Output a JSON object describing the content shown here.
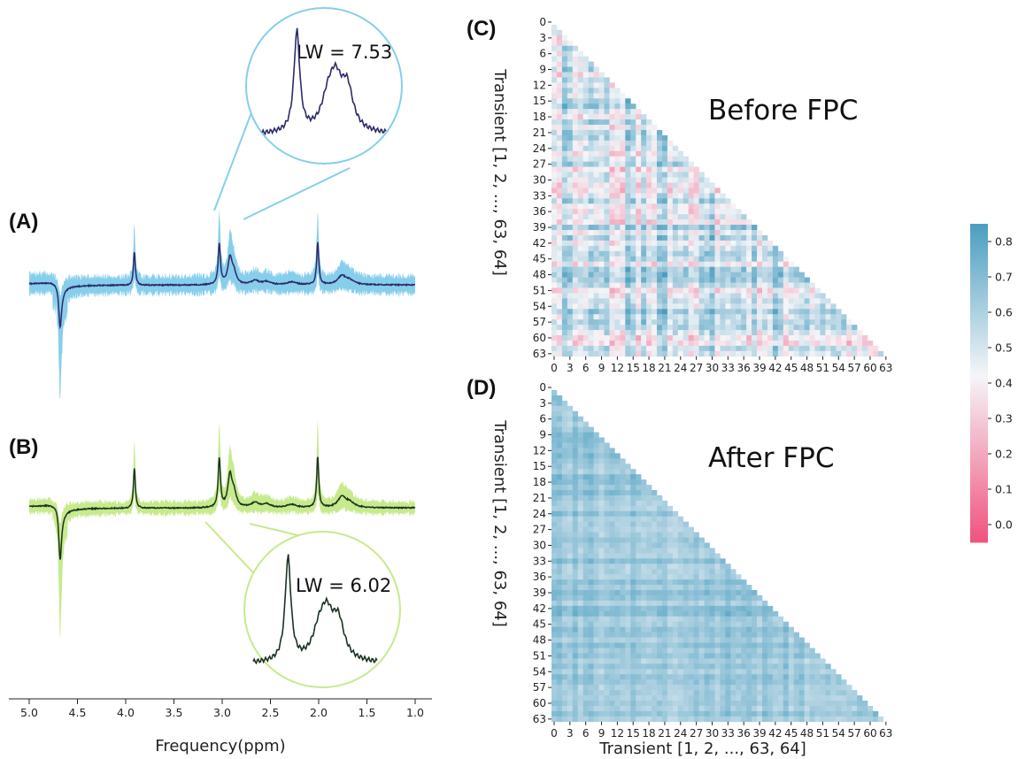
{
  "chart_data": [
    {
      "panel": "(A)",
      "type": "line",
      "description_series": "average spectrum with transient spread band",
      "x_axis_reversed": true,
      "xlim": [
        5.0,
        1.0
      ],
      "band_color": "#87ceeb",
      "line_color": "#2b2a6b",
      "peaks_ppm": [
        4.68,
        3.91,
        3.03,
        2.92,
        2.01,
        1.76
      ],
      "inset": {
        "label": "LW = 7.53",
        "circle_color": "#87ceeb",
        "line_color": "#2b2a6b"
      }
    },
    {
      "panel": "(B)",
      "type": "line",
      "x_axis_reversed": true,
      "xlim": [
        5.0,
        1.0
      ],
      "band_color": "#c6ea8c",
      "line_color": "#1a3320",
      "peaks_ppm": [
        4.68,
        3.91,
        3.03,
        2.92,
        2.01,
        1.76
      ],
      "inset": {
        "label": "LW = 6.02",
        "circle_color": "#c6ea8c",
        "line_color": "#1a3320"
      }
    },
    {
      "panel": "(C)",
      "type": "heatmap",
      "title": "Before FPC",
      "n": 64,
      "lower_triangle": true,
      "ylabel": "Transient [1, 2, ..., 63, 64]",
      "value_range": [
        -0.05,
        0.85
      ],
      "typical_value": 0.52,
      "noise_amplitude": 0.18,
      "seed": 11
    },
    {
      "panel": "(D)",
      "type": "heatmap",
      "title": "After FPC",
      "n": 64,
      "lower_triangle": true,
      "ylabel": "Transient [1, 2, ..., 63, 64]",
      "xlabel": "Transient [1, 2, ..., 63, 64]",
      "value_range": [
        -0.05,
        0.85
      ],
      "typical_value": 0.65,
      "noise_amplitude": 0.07,
      "seed": 5
    }
  ],
  "spectrum_axis": {
    "xlabel": "Frequency(ppm)",
    "ticks": [
      "5.0",
      "4.5",
      "4.0",
      "3.5",
      "3.0",
      "2.5",
      "2.0",
      "1.5",
      "1.0"
    ],
    "tick_values": [
      5.0,
      4.5,
      4.0,
      3.5,
      3.0,
      2.5,
      2.0,
      1.5,
      1.0
    ]
  },
  "heatmap_ticks": [
    "0",
    "3",
    "6",
    "9",
    "12",
    "15",
    "18",
    "21",
    "24",
    "27",
    "30",
    "33",
    "36",
    "39",
    "42",
    "45",
    "48",
    "51",
    "54",
    "57",
    "60",
    "63"
  ],
  "colorbar": {
    "ticks": [
      "0.0",
      "0.1",
      "0.2",
      "0.3",
      "0.4",
      "0.5",
      "0.6",
      "0.7",
      "0.8"
    ],
    "tick_values": [
      0.0,
      0.1,
      0.2,
      0.3,
      0.4,
      0.5,
      0.6,
      0.7,
      0.8
    ],
    "vmin": -0.05,
    "vmax": 0.85,
    "low_color": "#f0527e",
    "mid_color": "#f5f5f8",
    "high_color": "#4a9ec0"
  }
}
